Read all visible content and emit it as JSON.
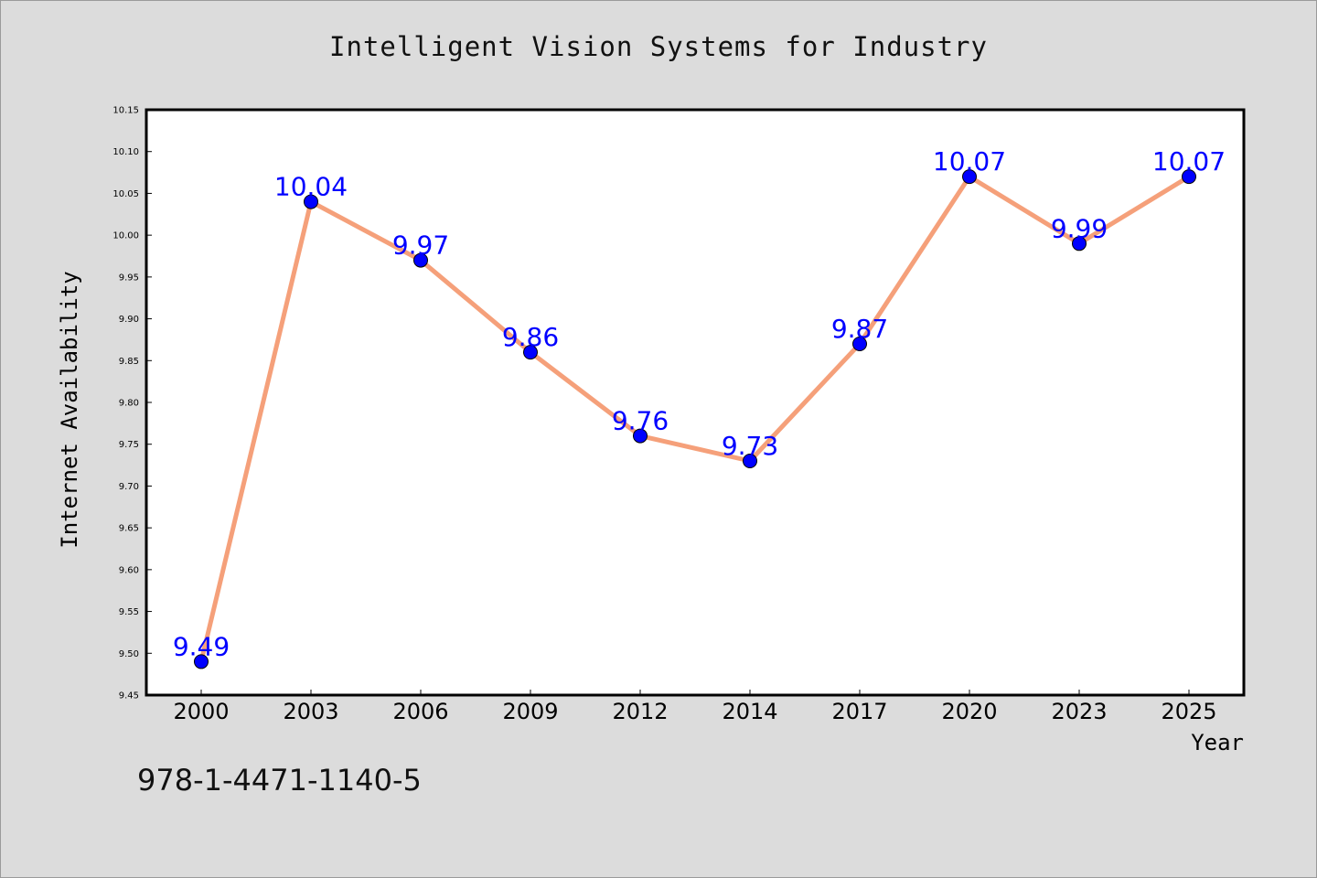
{
  "chart_data": {
    "type": "line",
    "title": "Intelligent Vision Systems for Industry",
    "xlabel": "Year",
    "ylabel": "Internet Availability",
    "categories": [
      "2000",
      "2003",
      "2006",
      "2009",
      "2012",
      "2014",
      "2017",
      "2020",
      "2023",
      "2025"
    ],
    "series": [
      {
        "values": [
          9.49,
          10.04,
          9.97,
          9.86,
          9.76,
          9.73,
          9.87,
          10.07,
          9.99,
          10.07
        ]
      }
    ],
    "ylim": [
      9.45,
      10.15
    ],
    "yticks": [
      "9.45",
      "9.50",
      "9.55",
      "9.60",
      "9.65",
      "9.70",
      "9.75",
      "9.80",
      "9.85",
      "9.90",
      "9.95",
      "10.00",
      "10.05",
      "10.10",
      "10.15"
    ],
    "data_labels": [
      "9.49",
      "10.04",
      "9.97",
      "9.86",
      "9.76",
      "9.73",
      "9.87",
      "10.07",
      "9.99",
      "10.07"
    ],
    "grid": false,
    "legend": "none",
    "colors": {
      "line": "#f5a07a",
      "marker": "#0000ff",
      "label": "#0000ff",
      "plot_bg": "#ffffff",
      "page_bg": "#dcdcdc"
    }
  },
  "footer": {
    "isbn": "978-1-4471-1140-5"
  }
}
